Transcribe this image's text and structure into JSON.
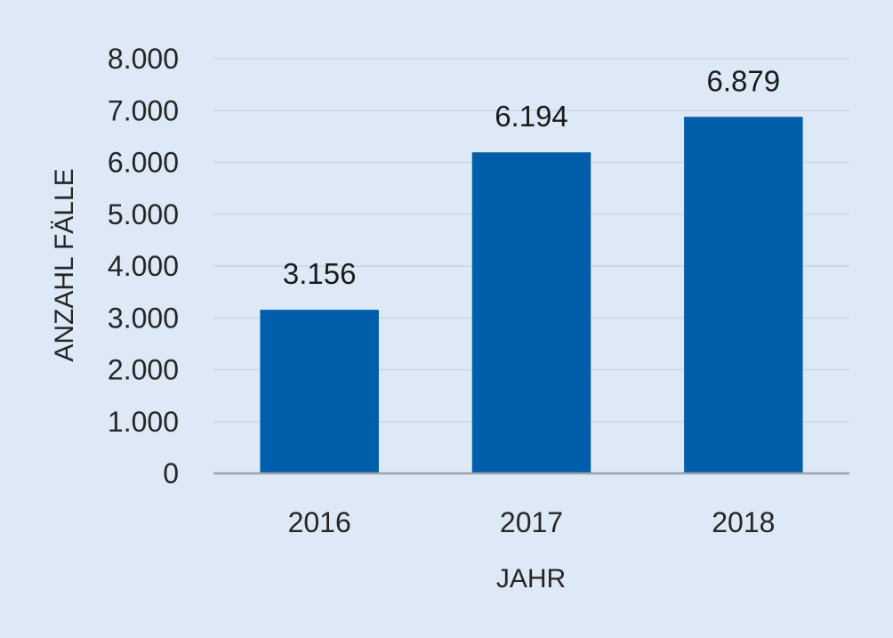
{
  "chart_data": {
    "type": "bar",
    "categories": [
      "2016",
      "2017",
      "2018"
    ],
    "values": [
      3156,
      6194,
      6879
    ],
    "data_labels": [
      "3.156",
      "6.194",
      "6.879"
    ],
    "xlabel": "JAHR",
    "ylabel": "ANZAHL FÄLLE",
    "ylim": [
      0,
      8000
    ],
    "yticks": [
      0,
      1000,
      2000,
      3000,
      4000,
      5000,
      6000,
      7000,
      8000
    ],
    "ytick_labels": [
      "0",
      "1.000",
      "2.000",
      "3.000",
      "4.000",
      "5.000",
      "6.000",
      "7.000",
      "8.000"
    ],
    "grid": true,
    "legend": "none"
  },
  "colors": {
    "background": "#dde9f6",
    "bar": "#005eaa",
    "gridline": "#c9d6e6",
    "baseline": "#9aa3ab"
  }
}
